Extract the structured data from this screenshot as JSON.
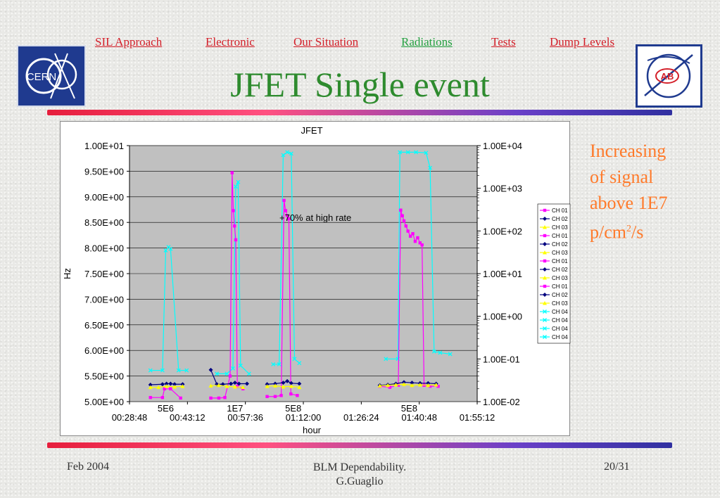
{
  "nav": {
    "items": [
      {
        "label": "SIL Approach",
        "active": false
      },
      {
        "label": "Electronic",
        "active": false
      },
      {
        "label": "Our Situation",
        "active": false
      },
      {
        "label": "Radiations",
        "active": true
      },
      {
        "label": "Tests",
        "active": false
      },
      {
        "label": "Dump Levels",
        "active": false
      }
    ]
  },
  "logos": {
    "left_text": "CERN",
    "right_text": "AB"
  },
  "slide": {
    "title": "JFET Single event"
  },
  "side_note": {
    "line1": "Increasing",
    "line2": "of signal",
    "line3": "above 1E7",
    "line4_pre": "p/cm",
    "line4_sup": "2",
    "line4_post": "/s"
  },
  "footer": {
    "date": "Feb 2004",
    "center_line1": "BLM Dependability.",
    "center_line2": "G.Guaglio",
    "page": "20/31"
  },
  "colors": {
    "magenta": "#ff00ff",
    "navy": "#000080",
    "yellow": "#ffff00",
    "cyan": "#00ffff",
    "plot_bg": "#c0c0c0",
    "title_green": "#2e8b2e",
    "accent_orange": "#ff7a2a"
  },
  "chart_data": {
    "type": "line",
    "title": "JFET",
    "xlabel": "hour",
    "ylabel": "Hz",
    "x_ticks": [
      "00:28:48",
      "00:43:12",
      "00:57:36",
      "01:12:00",
      "01:26:24",
      "01:40:48",
      "01:55:12"
    ],
    "xlim_minutes": [
      28.8,
      115.2
    ],
    "y_left": {
      "ticks": [
        "1.00E+01",
        "9.50E+00",
        "9.00E+00",
        "8.50E+00",
        "8.00E+00",
        "7.50E+00",
        "7.00E+00",
        "6.50E+00",
        "6.00E+00",
        "5.50E+00",
        "5.00E+00"
      ],
      "lim": [
        5.0,
        10.0
      ]
    },
    "y_right": {
      "ticks": [
        "1.00E+04",
        "1.00E+03",
        "1.00E+02",
        "1.00E+01",
        "1.00E+00",
        "1.00E-01",
        "1.00E-02"
      ],
      "lim_log10": [
        -2,
        4
      ],
      "scale": "log"
    },
    "grid": true,
    "annotations": [
      {
        "text": "+70% at high rate",
        "x_min": 75.0,
        "y": 8.6
      },
      {
        "text": "5E6",
        "x_min": 37.8,
        "y": 4.97
      },
      {
        "text": "1E7",
        "x_min": 55.0,
        "y": 4.97
      },
      {
        "text": "5E8",
        "x_min": 69.5,
        "y": 4.97
      },
      {
        "text": "5E8",
        "x_min": 98.3,
        "y": 4.97
      }
    ],
    "legend": {
      "placement": "right",
      "entries": [
        {
          "name": "CH 01",
          "color": "#ff00ff",
          "marker": "square"
        },
        {
          "name": "CH 02",
          "color": "#000080",
          "marker": "diamond"
        },
        {
          "name": "CH 03",
          "color": "#ffff00",
          "marker": "triangle"
        },
        {
          "name": "CH 01",
          "color": "#ff00ff",
          "marker": "square"
        },
        {
          "name": "CH 02",
          "color": "#000080",
          "marker": "diamond"
        },
        {
          "name": "CH 03",
          "color": "#ffff00",
          "marker": "triangle"
        },
        {
          "name": "CH 01",
          "color": "#ff00ff",
          "marker": "square"
        },
        {
          "name": "CH 02",
          "color": "#000080",
          "marker": "diamond"
        },
        {
          "name": "CH 03",
          "color": "#ffff00",
          "marker": "triangle"
        },
        {
          "name": "CH 01",
          "color": "#ff00ff",
          "marker": "square"
        },
        {
          "name": "CH 02",
          "color": "#000080",
          "marker": "diamond"
        },
        {
          "name": "CH 03",
          "color": "#ffff00",
          "marker": "triangle"
        },
        {
          "name": "CH 04",
          "color": "#00ffff",
          "marker": "x"
        },
        {
          "name": "CH 04",
          "color": "#00ffff",
          "marker": "x"
        },
        {
          "name": "CH 04",
          "color": "#00ffff",
          "marker": "x"
        },
        {
          "name": "CH 04",
          "color": "#00ffff",
          "marker": "x"
        }
      ]
    },
    "series": [
      {
        "channel": "CH 04",
        "axis": "right",
        "color": "#00ffff",
        "marker": "x",
        "points": [
          [
            34.0,
            0.054
          ],
          [
            37.0,
            0.054
          ],
          [
            37.8,
            35
          ],
          [
            38.5,
            42
          ],
          [
            39.0,
            38
          ],
          [
            41.0,
            0.054
          ],
          [
            43.0,
            0.054
          ]
        ]
      },
      {
        "channel": "CH 01",
        "axis": "left",
        "color": "#ff00ff",
        "marker": "square",
        "points": [
          [
            34.0,
            5.08
          ],
          [
            37.0,
            5.08
          ],
          [
            37.5,
            5.25
          ],
          [
            39.0,
            5.25
          ],
          [
            41.5,
            5.07
          ]
        ]
      },
      {
        "channel": "CH 02",
        "axis": "left",
        "color": "#000080",
        "marker": "diamond",
        "points": [
          [
            34.0,
            5.33
          ],
          [
            37.0,
            5.34
          ],
          [
            38.0,
            5.35
          ],
          [
            39.0,
            5.35
          ],
          [
            40.0,
            5.34
          ],
          [
            42.0,
            5.34
          ]
        ]
      },
      {
        "channel": "CH 03",
        "axis": "left",
        "color": "#ffff00",
        "marker": "triangle",
        "points": [
          [
            34.0,
            5.28
          ],
          [
            36.0,
            5.28
          ],
          [
            38.0,
            5.3
          ],
          [
            40.0,
            5.29
          ],
          [
            42.0,
            5.3
          ]
        ]
      },
      {
        "channel": "CH 04",
        "axis": "right",
        "color": "#00ffff",
        "marker": "x",
        "points": [
          [
            50.5,
            0.045
          ],
          [
            53.0,
            0.045
          ],
          [
            54.5,
            0.06
          ],
          [
            55.2,
            1100
          ],
          [
            55.8,
            1400
          ],
          [
            56.4,
            0.07
          ],
          [
            58.5,
            0.045
          ]
        ]
      },
      {
        "channel": "CH 01",
        "axis": "left",
        "color": "#ff00ff",
        "marker": "square",
        "points": [
          [
            49.0,
            5.07
          ],
          [
            51.0,
            5.07
          ],
          [
            52.5,
            5.08
          ],
          [
            53.8,
            5.5
          ],
          [
            54.3,
            9.47
          ],
          [
            54.6,
            8.73
          ],
          [
            54.9,
            8.43
          ],
          [
            55.2,
            8.16
          ],
          [
            55.6,
            5.3
          ],
          [
            57.0,
            5.25
          ]
        ]
      },
      {
        "channel": "CH 02",
        "axis": "left",
        "color": "#000080",
        "marker": "diamond",
        "points": [
          [
            49.0,
            5.62
          ],
          [
            50.5,
            5.34
          ],
          [
            52.0,
            5.34
          ],
          [
            54.0,
            5.35
          ],
          [
            55.0,
            5.37
          ],
          [
            56.0,
            5.35
          ],
          [
            58.0,
            5.35
          ]
        ]
      },
      {
        "channel": "CH 03",
        "axis": "left",
        "color": "#ffff00",
        "marker": "triangle",
        "points": [
          [
            49.0,
            5.31
          ],
          [
            51.0,
            5.32
          ],
          [
            53.0,
            5.3
          ],
          [
            55.0,
            5.29
          ],
          [
            57.0,
            5.28
          ]
        ]
      },
      {
        "channel": "CH 04",
        "axis": "right",
        "color": "#00ffff",
        "marker": "x",
        "points": [
          [
            64.5,
            0.075
          ],
          [
            66.0,
            0.075
          ],
          [
            67.0,
            6000
          ],
          [
            68.0,
            7000
          ],
          [
            69.0,
            6500
          ],
          [
            69.8,
            0.1
          ],
          [
            71.0,
            0.08
          ]
        ]
      },
      {
        "channel": "CH 01",
        "axis": "left",
        "color": "#ff00ff",
        "marker": "square",
        "points": [
          [
            63.0,
            5.1
          ],
          [
            65.0,
            5.1
          ],
          [
            66.5,
            5.12
          ],
          [
            67.2,
            8.93
          ],
          [
            67.6,
            8.73
          ],
          [
            68.0,
            8.63
          ],
          [
            68.4,
            8.57
          ],
          [
            68.9,
            5.15
          ],
          [
            70.5,
            5.12
          ]
        ]
      },
      {
        "channel": "CH 02",
        "axis": "left",
        "color": "#000080",
        "marker": "diamond",
        "points": [
          [
            63.0,
            5.34
          ],
          [
            65.0,
            5.35
          ],
          [
            67.0,
            5.37
          ],
          [
            68.0,
            5.4
          ],
          [
            69.0,
            5.36
          ],
          [
            71.0,
            5.35
          ]
        ]
      },
      {
        "channel": "CH 03",
        "axis": "left",
        "color": "#ffff00",
        "marker": "triangle",
        "points": [
          [
            63.0,
            5.3
          ],
          [
            65.0,
            5.31
          ],
          [
            67.0,
            5.29
          ],
          [
            69.0,
            5.3
          ],
          [
            71.0,
            5.28
          ]
        ]
      },
      {
        "channel": "CH 04",
        "axis": "right",
        "color": "#00ffff",
        "marker": "x",
        "points": [
          [
            92.5,
            0.1
          ],
          [
            95.5,
            0.1
          ],
          [
            96.0,
            7000
          ],
          [
            98.0,
            7000
          ],
          [
            100.0,
            7000
          ],
          [
            102.5,
            6800
          ],
          [
            103.5,
            3000
          ],
          [
            104.5,
            0.15
          ],
          [
            106.0,
            0.14
          ],
          [
            108.5,
            0.13
          ]
        ]
      },
      {
        "channel": "CH 01",
        "axis": "left",
        "color": "#ff00ff",
        "marker": "square",
        "points": [
          [
            91.0,
            5.3
          ],
          [
            93.5,
            5.28
          ],
          [
            95.6,
            5.32
          ],
          [
            96.2,
            8.74
          ],
          [
            96.6,
            8.63
          ],
          [
            97.0,
            8.53
          ],
          [
            97.5,
            8.43
          ],
          [
            98.0,
            8.33
          ],
          [
            98.6,
            8.23
          ],
          [
            99.2,
            8.28
          ],
          [
            99.8,
            8.13
          ],
          [
            100.4,
            8.2
          ],
          [
            101.0,
            8.1
          ],
          [
            101.5,
            8.06
          ],
          [
            102.0,
            5.32
          ],
          [
            103.5,
            5.3
          ],
          [
            105.5,
            5.3
          ]
        ]
      },
      {
        "channel": "CH 02",
        "axis": "left",
        "color": "#000080",
        "marker": "diamond",
        "points": [
          [
            91.0,
            5.32
          ],
          [
            93.0,
            5.33
          ],
          [
            95.0,
            5.35
          ],
          [
            97.0,
            5.38
          ],
          [
            99.0,
            5.37
          ],
          [
            101.0,
            5.36
          ],
          [
            103.0,
            5.36
          ],
          [
            105.0,
            5.35
          ]
        ]
      },
      {
        "channel": "CH 03",
        "axis": "left",
        "color": "#ffff00",
        "marker": "triangle",
        "points": [
          [
            91.0,
            5.31
          ],
          [
            93.0,
            5.32
          ],
          [
            95.0,
            5.33
          ],
          [
            97.0,
            5.34
          ],
          [
            99.0,
            5.32
          ],
          [
            101.0,
            5.33
          ],
          [
            103.0,
            5.32
          ],
          [
            105.0,
            5.33
          ]
        ]
      }
    ]
  }
}
